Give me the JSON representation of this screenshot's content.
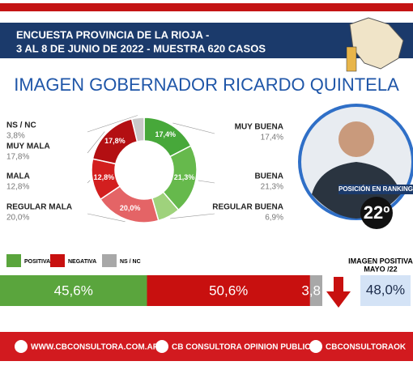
{
  "header": {
    "line1": "ENCUESTA PROVINCIA DE LA RIOJA -",
    "line2": "3 AL 8 DE JUNIO DE 2022 - MUESTRA 620 CASOS"
  },
  "chart_data": [
    {
      "type": "donut",
      "title": "IMAGEN GOBERNADOR RICARDO QUINTELA",
      "categories": [
        "MUY BUENA",
        "BUENA",
        "REGULAR BUENA",
        "REGULAR MALA",
        "MALA",
        "MUY MALA",
        "NS / NC"
      ],
      "values": [
        17.4,
        21.3,
        6.9,
        20.0,
        12.8,
        17.8,
        3.8
      ],
      "value_labels": [
        "17,4%",
        "21,3%",
        "6,9%",
        "20,0%",
        "12,8%",
        "17,8%",
        "3,8%"
      ],
      "colors": [
        "#47a83a",
        "#66b94c",
        "#9fd27c",
        "#e46466",
        "#d31f1f",
        "#b30f12",
        "#c9c9c9"
      ]
    },
    {
      "type": "stacked_bar",
      "categories": [
        "POSITIVA",
        "NEGATIVA",
        "NS / NC"
      ],
      "values": [
        45.6,
        50.6,
        3.8
      ],
      "value_labels": [
        "45,6%",
        "50,6%",
        "3,8"
      ],
      "colors": [
        "#5aa53d",
        "#c8100f",
        "#a8a8a8"
      ]
    }
  ],
  "ranking": {
    "label": "POSICIÓN EN RANKING",
    "position": "22º"
  },
  "previous": {
    "label_line1": "IMAGEN POSITIVA",
    "label_line2": "MAYO /22",
    "value": "48,0%"
  },
  "footer": {
    "web": "WWW.CBCONSULTORA.COM.AR",
    "facebook": "CB CONSULTORA OPINION PUBLICA",
    "twitter": "CBCONSULTORAOK"
  }
}
